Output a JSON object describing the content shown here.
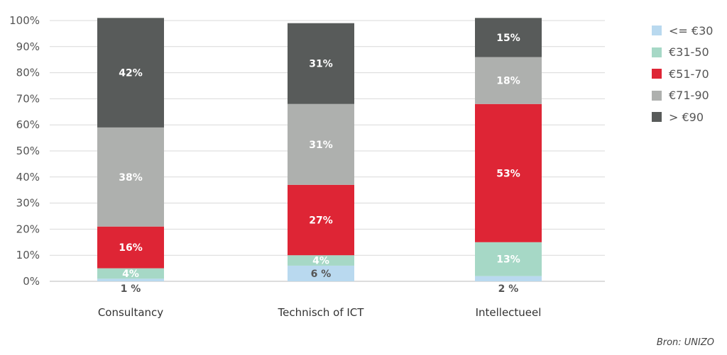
{
  "chart_data": {
    "type": "bar",
    "stacked": true,
    "ylim": [
      0,
      100
    ],
    "yticks": [
      "0%",
      "10%",
      "20%",
      "30%",
      "40%",
      "50%",
      "60%",
      "70%",
      "80%",
      "90%",
      "100%"
    ],
    "categories": [
      "Consultancy",
      "Technisch of ICT",
      "Intellectueel"
    ],
    "series": [
      {
        "name": "<= €30",
        "color": "#b9d9ef",
        "values": [
          1,
          6,
          2
        ],
        "labels": [
          "1 %",
          "6 %",
          "2 %"
        ],
        "label_color": "#555555"
      },
      {
        "name": "€31-50",
        "color": "#a6d8c6",
        "values": [
          4,
          4,
          13
        ],
        "labels": [
          "4%",
          "4%",
          "13%"
        ],
        "label_color": "#ffffff"
      },
      {
        "name": "€51-70",
        "color": "#de2535",
        "values": [
          16,
          27,
          53
        ],
        "labels": [
          "16%",
          "27%",
          "53%"
        ],
        "label_color": "#ffffff"
      },
      {
        "name": "€71-90",
        "color": "#aeb0ae",
        "values": [
          38,
          31,
          18
        ],
        "labels": [
          "38%",
          "31%",
          "18%"
        ],
        "label_color": "#ffffff"
      },
      {
        "name": "> €90",
        "color": "#585b5a",
        "values": [
          42,
          31,
          15
        ],
        "labels": [
          "42%",
          "31%",
          "15%"
        ],
        "label_color": "#ffffff"
      }
    ],
    "grid": true,
    "legend_position": "right",
    "source": "Bron: UNIZO"
  }
}
